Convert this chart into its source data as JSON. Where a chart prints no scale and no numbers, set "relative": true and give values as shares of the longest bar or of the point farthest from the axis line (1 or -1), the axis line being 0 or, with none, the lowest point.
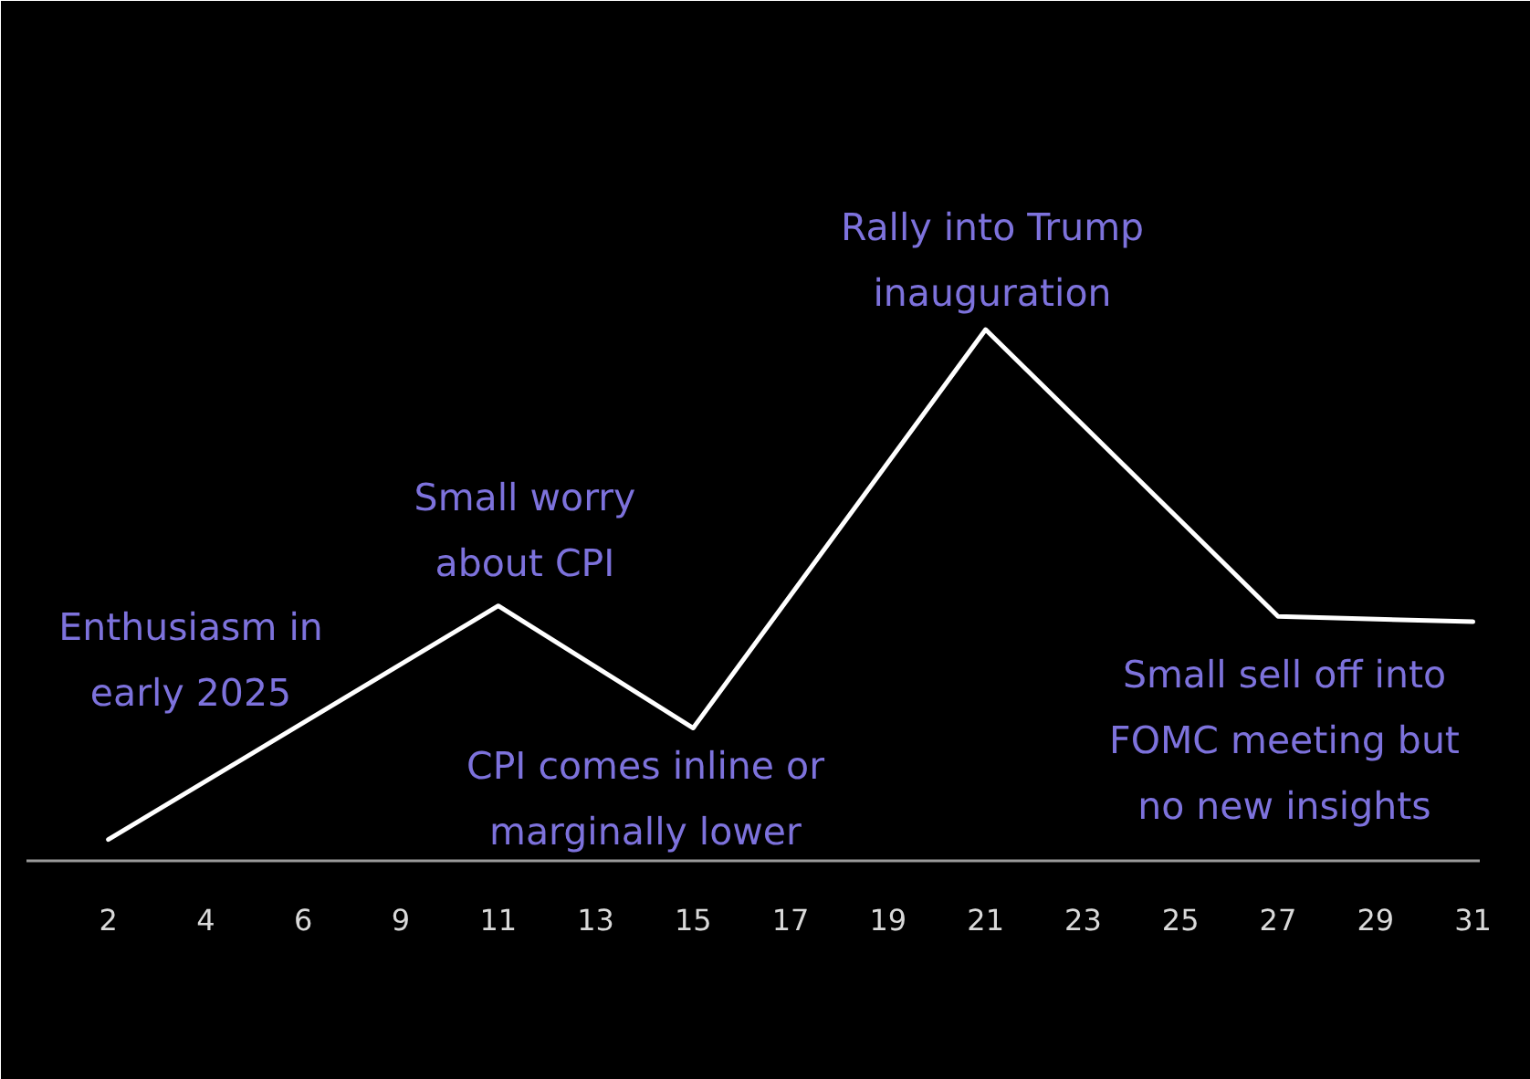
{
  "chart_data": {
    "type": "line",
    "relative": true,
    "grid": false,
    "categories": [
      "2",
      "4",
      "6",
      "9",
      "11",
      "13",
      "15",
      "17",
      "19",
      "21",
      "23",
      "25",
      "27",
      "29",
      "31"
    ],
    "series": [
      {
        "color": "#ffffff",
        "x": [
          "2",
          "11",
          "15",
          "21",
          "27",
          "31"
        ],
        "values": [
          0.04,
          0.48,
          0.25,
          1,
          0.46,
          0.45
        ]
      }
    ],
    "annotations": [
      "Enthusiasm in\nearly 2025",
      "Small worry\nabout CPI",
      "CPI comes inline or\nmarginally lower",
      "Rally into Trump\ninauguration",
      "Small sell off into\nFOMC meeting but\nno new insights"
    ]
  }
}
